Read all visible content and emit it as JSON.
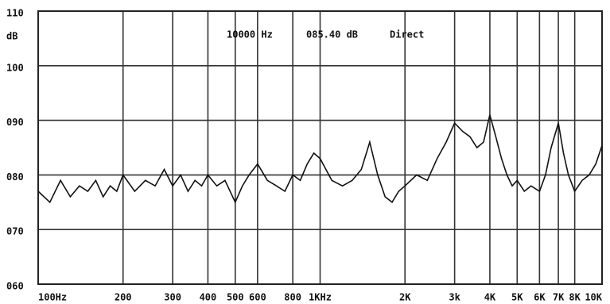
{
  "chart_data": {
    "type": "line",
    "y_unit": "dB",
    "annotation": [
      "10000 Hz",
      "085.40 dB",
      "Direct"
    ],
    "log_x": true,
    "grid": true,
    "xlim": [
      100,
      10000
    ],
    "ylim": [
      60,
      110
    ],
    "yticks": [
      {
        "value": 60,
        "label": "060"
      },
      {
        "value": 70,
        "label": "070"
      },
      {
        "value": 80,
        "label": "080"
      },
      {
        "value": 90,
        "label": "090"
      },
      100,
      110
    ],
    "xticks": [
      {
        "value": 100,
        "label": "100Hz"
      },
      200,
      300,
      400,
      500,
      600,
      800,
      {
        "value": 1000,
        "label": "1KHz"
      },
      {
        "value": 2000,
        "label": "2K"
      },
      {
        "value": 3000,
        "label": "3k"
      },
      {
        "value": 4000,
        "label": "4K"
      },
      {
        "value": 5000,
        "label": "5K"
      },
      {
        "value": 6000,
        "label": "6K"
      },
      {
        "value": 7000,
        "label": "7K"
      },
      {
        "value": 8000,
        "label": "8K"
      },
      {
        "value": 10000,
        "label": "10K"
      }
    ],
    "x": [
      100,
      110,
      120,
      130,
      140,
      150,
      160,
      170,
      180,
      190,
      200,
      220,
      240,
      260,
      280,
      300,
      320,
      340,
      360,
      380,
      400,
      430,
      460,
      500,
      530,
      560,
      600,
      650,
      700,
      750,
      800,
      850,
      900,
      950,
      1000,
      1100,
      1200,
      1300,
      1400,
      1500,
      1600,
      1700,
      1800,
      1900,
      2000,
      2200,
      2400,
      2600,
      2800,
      3000,
      3200,
      3400,
      3600,
      3800,
      4000,
      4200,
      4400,
      4600,
      4800,
      5000,
      5300,
      5600,
      6000,
      6300,
      6600,
      7000,
      7300,
      7600,
      8000,
      8500,
      9000,
      9500,
      10000
    ],
    "series": [
      {
        "color": "#111111",
        "values": [
          77,
          75,
          79,
          76,
          78,
          77,
          79,
          76,
          78,
          77,
          80,
          77,
          79,
          78,
          81,
          78,
          80,
          77,
          79,
          78,
          80,
          78,
          79,
          75,
          78,
          80,
          82,
          79,
          78,
          77,
          80,
          79,
          82,
          84,
          83,
          79,
          78,
          79,
          81,
          86,
          80,
          76,
          75,
          77,
          78,
          80,
          79,
          83,
          86,
          89.5,
          88,
          87,
          85,
          86,
          91,
          87,
          83,
          80,
          78,
          79,
          77,
          78,
          77,
          80,
          85,
          89.5,
          84,
          80,
          77,
          79,
          80,
          82,
          85.4
        ]
      }
    ]
  }
}
